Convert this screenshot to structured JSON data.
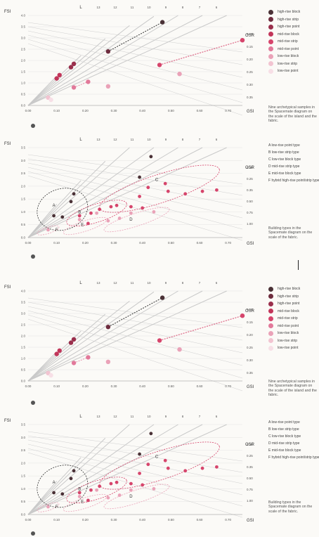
{
  "axes": {
    "fsi_label": "FSI",
    "gsi_label": "GSI",
    "osr_label": "OSR",
    "l_label": "L",
    "fsi_ticks": [
      "4.0",
      "3.5",
      "3.0",
      "2.5",
      "2.0",
      "1.5",
      "1.0",
      "0.5",
      "0.0"
    ],
    "gsi_ticks_top": [
      "0.00",
      "0.10",
      "0.20",
      "0.30",
      "0.40",
      "0.50",
      "0.60",
      "0.70"
    ],
    "gsi_ticks_bottom": [
      "0.00",
      "0.10",
      "0.20",
      "0.30",
      "0.40",
      "0.50",
      "0.60",
      "0.70"
    ],
    "l_ticks": [
      "13",
      "12",
      "11",
      "10",
      "9",
      "8",
      "7",
      "6"
    ],
    "osr_ticks_top": [
      "0.10",
      "0.15",
      "0.20",
      "0.25",
      "0.30",
      "0.35"
    ],
    "osr_ticks_bottom": [
      "0.15",
      "0.25",
      "0.35",
      "0.50",
      "0.75",
      "1.00"
    ]
  },
  "legend": [
    {
      "label": "high-rise block",
      "color": "#4a3136"
    },
    {
      "label": "high-rise strip",
      "color": "#6e2c3e"
    },
    {
      "label": "high-rise point",
      "color": "#9a2f4c"
    },
    {
      "label": "mid-rise block",
      "color": "#c2365a"
    },
    {
      "label": "mid-rise strip",
      "color": "#d6456c"
    },
    {
      "label": "mid-rise point",
      "color": "#e2799a"
    },
    {
      "label": "low-rise block",
      "color": "#eaa2b8"
    },
    {
      "label": "low-rise strip",
      "color": "#f2c4d1"
    },
    {
      "label": "low-rise point",
      "color": "#f7dfe6"
    }
  ],
  "captions": {
    "archetypes": "Nine archetypical samples in the Spacemate diagram on the scale of the island and the fabric.",
    "building_types": "Building types in the Spacemate diagram on the scale of the fabric."
  },
  "type_list": [
    "A  low-rise point type",
    "B  low-rise strip type",
    "C  low-rise block type",
    "D  mid-rise strip type",
    "E  mid-rise block type",
    "F  hybrid high-rise point/strip type"
  ],
  "cluster_letters": [
    "A",
    "B",
    "C",
    "D",
    "E",
    "F"
  ],
  "colors": {
    "dark": "#4a3136",
    "pink": "#d6456c",
    "light": "#f2c4d1",
    "grid": "#c9c9c9"
  },
  "chart_data": [
    {
      "type": "scatter",
      "title": "",
      "xlabel": "GSI",
      "ylabel": "FSI",
      "xlim": [
        0,
        0.75
      ],
      "ylim": [
        0,
        4.0
      ],
      "grid": true,
      "legend_placement": "right",
      "series": [
        {
          "name": "high-rise block",
          "color": "#4a3136",
          "points": [
            [
              0.47,
              3.7
            ]
          ]
        },
        {
          "name": "high-rise strip",
          "color": "#6e2c3e",
          "points": [
            [
              0.28,
              2.4
            ]
          ]
        },
        {
          "name": "high-rise point",
          "color": "#9a2f4c",
          "points": [
            [
              0.15,
              1.7
            ],
            [
              0.16,
              1.85
            ]
          ]
        },
        {
          "name": "mid-rise block",
          "color": "#c2365a",
          "points": [
            [
              0.1,
              1.2
            ],
            [
              0.11,
              1.35
            ]
          ]
        },
        {
          "name": "mid-rise strip",
          "color": "#d6456c",
          "points": [
            [
              0.46,
              1.8
            ],
            [
              0.76,
              2.9
            ]
          ]
        },
        {
          "name": "mid-rise point",
          "color": "#e2799a",
          "points": [
            [
              0.16,
              0.8
            ],
            [
              0.21,
              1.05
            ]
          ]
        },
        {
          "name": "low-rise block",
          "color": "#eaa2b8",
          "points": [
            [
              0.28,
              0.85
            ],
            [
              0.53,
              1.4
            ]
          ]
        },
        {
          "name": "low-rise strip",
          "color": "#f2c4d1",
          "points": [
            [
              0.07,
              0.35
            ]
          ]
        },
        {
          "name": "low-rise point",
          "color": "#f7dfe6",
          "points": [
            [
              0.08,
              0.25
            ]
          ]
        }
      ]
    },
    {
      "type": "scatter",
      "title": "",
      "xlabel": "GSI",
      "ylabel": "FSI",
      "xlim": [
        0,
        0.75
      ],
      "ylim": [
        0,
        3.5
      ],
      "grid": true,
      "clusters": [
        "A",
        "B",
        "C",
        "D",
        "E",
        "F"
      ],
      "series": [
        {
          "name": "high-rise",
          "color": "#4a3136",
          "points": [
            [
              0.39,
              2.35
            ],
            [
              0.43,
              3.15
            ],
            [
              0.16,
              1.7
            ],
            [
              0.15,
              1.4
            ],
            [
              0.12,
              0.8
            ],
            [
              0.09,
              0.85
            ]
          ]
        },
        {
          "name": "mid-rise",
          "color": "#d6456c",
          "points": [
            [
              0.42,
              1.95
            ],
            [
              0.49,
              1.8
            ],
            [
              0.55,
              1.7
            ],
            [
              0.48,
              2.1
            ],
            [
              0.31,
              1.25
            ],
            [
              0.25,
              1.1
            ],
            [
              0.22,
              0.95
            ],
            [
              0.18,
              0.85
            ],
            [
              0.29,
              1.2
            ],
            [
              0.36,
              1.2
            ],
            [
              0.4,
              1.15
            ],
            [
              0.61,
              1.8
            ],
            [
              0.66,
              1.85
            ],
            [
              0.39,
              1.6
            ],
            [
              0.21,
              0.55
            ]
          ]
        },
        {
          "name": "low-rise",
          "color": "#eaa2b8",
          "points": [
            [
              0.07,
              0.3
            ],
            [
              0.32,
              0.75
            ],
            [
              0.36,
              0.95
            ],
            [
              0.44,
              1.0
            ],
            [
              0.28,
              0.65
            ],
            [
              0.24,
              0.95
            ],
            [
              0.18,
              0.7
            ]
          ]
        }
      ]
    }
  ]
}
